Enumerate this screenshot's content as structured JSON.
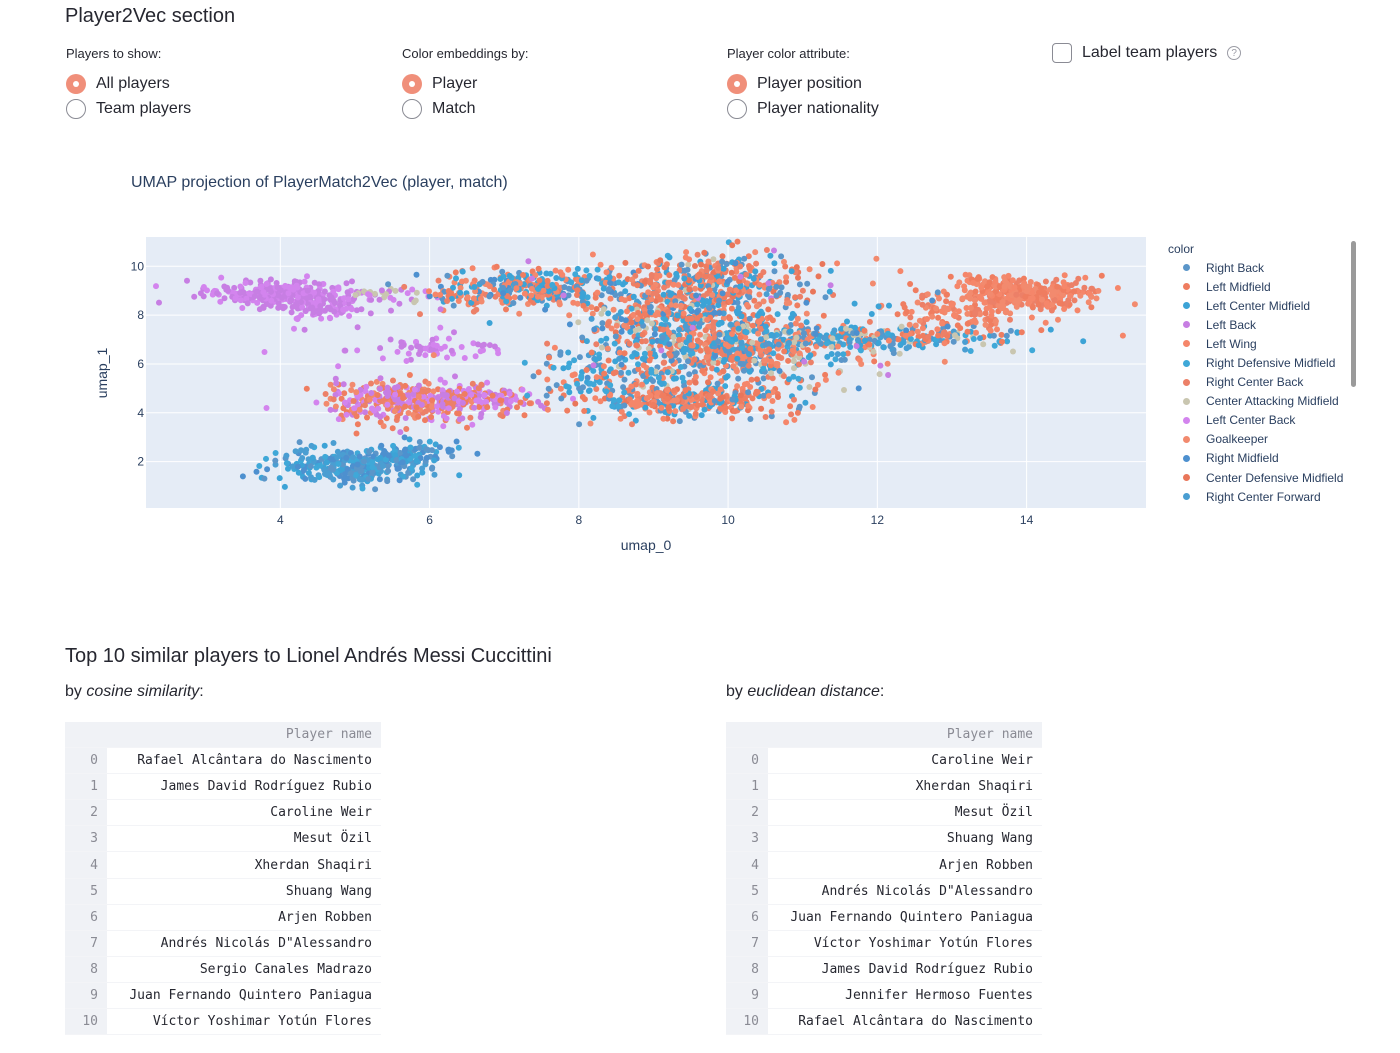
{
  "section_title": "Player2Vec section",
  "players_to_show": {
    "label": "Players to show:",
    "options": [
      "All players",
      "Team players"
    ],
    "selected": 0
  },
  "color_embeddings": {
    "label": "Color embeddings by:",
    "options": [
      "Player",
      "Match"
    ],
    "selected": 0
  },
  "player_color_attribute": {
    "label": "Player color attribute:",
    "options": [
      "Player position",
      "Player nationality"
    ],
    "selected": 0
  },
  "label_team_players": {
    "label": "Label team players",
    "checked": false,
    "help_icon": "question-circle-icon"
  },
  "chart_data": {
    "type": "scatter",
    "title": "UMAP projection of PlayerMatch2Vec (player, match)",
    "xlabel": "umap_0",
    "ylabel": "umap_1",
    "xlim": [
      2.2,
      15.6
    ],
    "ylim": [
      0.1,
      11.2
    ],
    "xticks": [
      4,
      6,
      8,
      10,
      12,
      14
    ],
    "yticks": [
      2,
      4,
      6,
      8,
      10
    ],
    "grid": true,
    "legend_title": "color",
    "legend_position": "right",
    "series": [
      {
        "name": "Right Back",
        "color": "#5b96c9"
      },
      {
        "name": "Left Midfield",
        "color": "#ef7d60"
      },
      {
        "name": "Left Center Midfield",
        "color": "#3ca3d6"
      },
      {
        "name": "Left Back",
        "color": "#c77ee3"
      },
      {
        "name": "Left Wing",
        "color": "#f5866a"
      },
      {
        "name": "Right Defensive Midfield",
        "color": "#3fa8d8"
      },
      {
        "name": "Right Center Back",
        "color": "#ec8068"
      },
      {
        "name": "Center Attacking Midfield",
        "color": "#c9c6b0"
      },
      {
        "name": "Left Center Back",
        "color": "#d384ee"
      },
      {
        "name": "Goalkeeper",
        "color": "#f28a6e"
      },
      {
        "name": "Right Midfield",
        "color": "#4d90cf"
      },
      {
        "name": "Center Defensive Midfield",
        "color": "#e9765a"
      },
      {
        "name": "Right Center Forward",
        "color": "#4a9ed2"
      }
    ],
    "clusters": [
      {
        "cx": 3.9,
        "cy": 8.9,
        "sx": 0.45,
        "sy": 0.25,
        "n": 260,
        "palette": [
          3,
          8
        ]
      },
      {
        "cx": 4.5,
        "cy": 8.3,
        "sx": 0.3,
        "sy": 0.3,
        "n": 90,
        "palette": [
          3,
          8
        ]
      },
      {
        "cx": 5.3,
        "cy": 8.8,
        "sx": 0.5,
        "sy": 0.15,
        "n": 40,
        "palette": [
          3,
          8,
          7
        ]
      },
      {
        "cx": 6.0,
        "cy": 6.7,
        "sx": 0.55,
        "sy": 0.25,
        "n": 60,
        "palette": [
          3,
          8
        ]
      },
      {
        "cx": 5.7,
        "cy": 4.5,
        "sx": 0.6,
        "sy": 0.4,
        "n": 380,
        "palette": [
          3,
          8,
          1,
          9,
          6
        ]
      },
      {
        "cx": 6.8,
        "cy": 4.5,
        "sx": 0.45,
        "sy": 0.25,
        "n": 90,
        "palette": [
          3,
          8,
          1
        ]
      },
      {
        "cx": 5.0,
        "cy": 1.8,
        "sx": 0.5,
        "sy": 0.35,
        "n": 300,
        "palette": [
          0,
          2,
          5,
          10,
          12
        ]
      },
      {
        "cx": 5.7,
        "cy": 2.3,
        "sx": 0.3,
        "sy": 0.3,
        "n": 80,
        "palette": [
          0,
          2,
          5,
          10
        ]
      },
      {
        "cx": 7.3,
        "cy": 8.9,
        "sx": 0.7,
        "sy": 0.35,
        "n": 200,
        "palette": [
          1,
          4,
          6,
          9,
          0,
          2,
          10
        ]
      },
      {
        "cx": 7.5,
        "cy": 9.4,
        "sx": 0.6,
        "sy": 0.3,
        "n": 120,
        "palette": [
          0,
          2,
          5,
          1,
          4
        ]
      },
      {
        "cx": 9.4,
        "cy": 7.5,
        "sx": 0.6,
        "sy": 1.2,
        "n": 600,
        "palette": [
          0,
          2,
          5,
          10,
          12,
          1,
          4,
          6,
          9,
          11,
          7
        ]
      },
      {
        "cx": 10.4,
        "cy": 6.4,
        "sx": 0.6,
        "sy": 0.7,
        "n": 300,
        "palette": [
          0,
          2,
          5,
          1,
          4,
          6,
          9,
          7
        ]
      },
      {
        "cx": 9.5,
        "cy": 4.5,
        "sx": 0.6,
        "sy": 0.35,
        "n": 300,
        "palette": [
          1,
          4,
          6,
          9,
          11,
          0,
          2
        ]
      },
      {
        "cx": 8.3,
        "cy": 5.4,
        "sx": 0.4,
        "sy": 0.8,
        "n": 130,
        "palette": [
          0,
          2,
          5,
          1,
          4
        ]
      },
      {
        "cx": 9.9,
        "cy": 9.4,
        "sx": 0.55,
        "sy": 0.5,
        "n": 250,
        "palette": [
          1,
          4,
          6,
          9,
          11,
          0,
          2
        ]
      },
      {
        "cx": 11.9,
        "cy": 7.0,
        "sx": 1.0,
        "sy": 0.25,
        "n": 260,
        "palette": [
          0,
          2,
          5,
          12,
          1,
          4,
          7
        ]
      },
      {
        "cx": 13.0,
        "cy": 8.0,
        "sx": 0.5,
        "sy": 0.45,
        "n": 100,
        "palette": [
          1,
          4,
          6,
          9
        ]
      },
      {
        "cx": 14.0,
        "cy": 8.8,
        "sx": 0.5,
        "sy": 0.28,
        "n": 300,
        "palette": [
          9,
          1,
          4,
          6
        ]
      },
      {
        "cx": 13.5,
        "cy": 9.3,
        "sx": 0.3,
        "sy": 0.2,
        "n": 50,
        "palette": [
          9,
          1,
          4
        ]
      },
      {
        "cx": 10.0,
        "cy": 7.9,
        "sx": 1.6,
        "sy": 1.3,
        "n": 180,
        "palette": [
          0,
          1,
          2,
          4,
          6,
          9,
          10,
          3
        ]
      }
    ]
  },
  "similar_title": "Top 10 similar players to Lionel Andrés Messi Cuccittini",
  "cosine": {
    "by": "by",
    "metric": "cosine similarity",
    "colon": ":",
    "column": "Player name",
    "index": [
      "0",
      "1",
      "2",
      "3",
      "4",
      "5",
      "6",
      "7",
      "8",
      "9",
      "10"
    ],
    "rows": [
      "Rafael Alcântara do Nascimento",
      "James David Rodríguez Rubio",
      "Caroline Weir",
      "Mesut Özil",
      "Xherdan Shaqiri",
      "Shuang Wang",
      "Arjen Robben",
      "Andrés Nicolás D\"Alessandro",
      "Sergio Canales Madrazo",
      "Juan Fernando Quintero Paniagua",
      "Víctor Yoshimar Yotún Flores"
    ]
  },
  "euclidean": {
    "by": "by",
    "metric": "euclidean distance",
    "colon": ":",
    "column": "Player name",
    "index": [
      "0",
      "1",
      "2",
      "3",
      "4",
      "5",
      "6",
      "7",
      "8",
      "9",
      "10"
    ],
    "rows": [
      "Caroline Weir",
      "Xherdan Shaqiri",
      "Mesut Özil",
      "Shuang Wang",
      "Arjen Robben",
      "Andrés Nicolás D\"Alessandro",
      "Juan Fernando Quintero Paniagua",
      "Víctor Yoshimar Yotún Flores",
      "James David Rodríguez Rubio",
      "Jennifer Hermoso Fuentes",
      "Rafael Alcântara do Nascimento"
    ]
  }
}
